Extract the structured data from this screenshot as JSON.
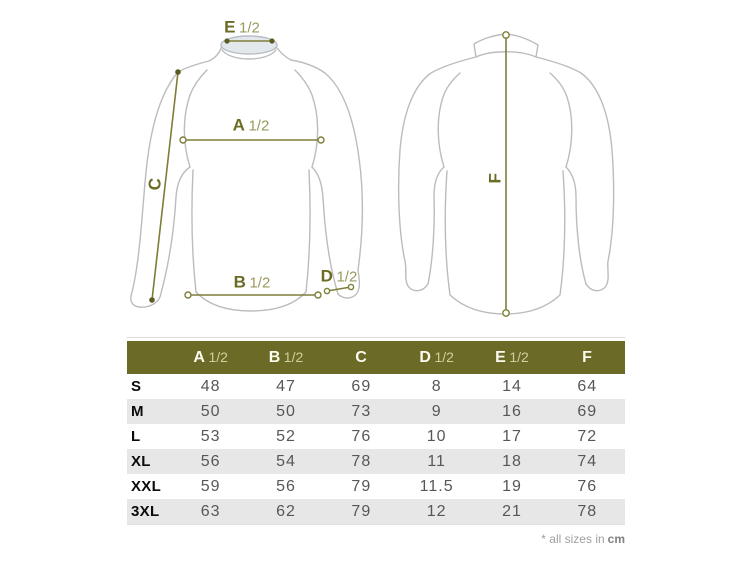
{
  "diagram": {
    "measurement_labels": {
      "E": {
        "letter": "E",
        "fraction": "1/2"
      },
      "A": {
        "letter": "A",
        "fraction": "1/2"
      },
      "B": {
        "letter": "B",
        "fraction": "1/2"
      },
      "C": {
        "letter": "C",
        "fraction": ""
      },
      "D": {
        "letter": "D",
        "fraction": "1/2"
      },
      "F": {
        "letter": "F",
        "fraction": ""
      }
    }
  },
  "table": {
    "columns": [
      {
        "letter": "A",
        "fraction": "1/2"
      },
      {
        "letter": "B",
        "fraction": "1/2"
      },
      {
        "letter": "C",
        "fraction": ""
      },
      {
        "letter": "D",
        "fraction": "1/2"
      },
      {
        "letter": "E",
        "fraction": "1/2"
      },
      {
        "letter": "F",
        "fraction": ""
      }
    ],
    "rows": [
      {
        "size": "S",
        "values": [
          "48",
          "47",
          "69",
          "8",
          "14",
          "64"
        ]
      },
      {
        "size": "M",
        "values": [
          "50",
          "50",
          "73",
          "9",
          "16",
          "69"
        ]
      },
      {
        "size": "L",
        "values": [
          "53",
          "52",
          "76",
          "10",
          "17",
          "72"
        ]
      },
      {
        "size": "XL",
        "values": [
          "56",
          "54",
          "78",
          "11",
          "18",
          "74"
        ]
      },
      {
        "size": "XXL",
        "values": [
          "59",
          "56",
          "79",
          "11.5",
          "19",
          "76"
        ]
      },
      {
        "size": "3XL",
        "values": [
          "63",
          "62",
          "79",
          "12",
          "21",
          "78"
        ]
      }
    ]
  },
  "footnote": {
    "prefix": "* all sizes in",
    "unit": "cm"
  },
  "colors": {
    "header_bg": "#6b6a26",
    "measure_line": "#7e7e38",
    "label_dark": "#6b6b24",
    "label_light": "#9a9a5e",
    "row_alt": "#e7e7e7",
    "jacket_outline": "#bcbcbc",
    "collar_fill": "#e3e8ec"
  }
}
